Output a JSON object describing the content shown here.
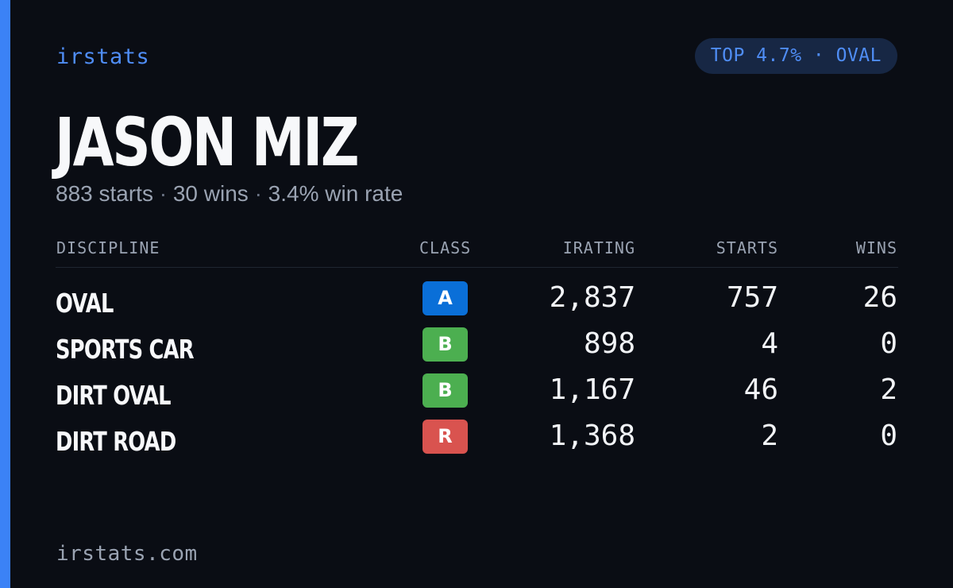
{
  "brand": "irstats",
  "rank_badge": "TOP 4.7% · OVAL",
  "driver": {
    "name": "JASON MIZ",
    "starts_text": "883 starts",
    "wins_text": "30 wins",
    "win_rate_text": "3.4% win rate",
    "separator": "·"
  },
  "table": {
    "headers": {
      "discipline": "DISCIPLINE",
      "class": "CLASS",
      "irating": "IRATING",
      "starts": "STARTS",
      "wins": "WINS"
    },
    "rows": [
      {
        "discipline": "OVAL",
        "class": "A",
        "class_color": "#0a6fd8",
        "irating": "2,837",
        "starts": "757",
        "wins": "26"
      },
      {
        "discipline": "SPORTS CAR",
        "class": "B",
        "class_color": "#4caf50",
        "irating": "898",
        "starts": "4",
        "wins": "0"
      },
      {
        "discipline": "DIRT OVAL",
        "class": "B",
        "class_color": "#4caf50",
        "irating": "1,167",
        "starts": "46",
        "wins": "2"
      },
      {
        "discipline": "DIRT ROAD",
        "class": "R",
        "class_color": "#d9534f",
        "irating": "1,368",
        "starts": "2",
        "wins": "0"
      }
    ]
  },
  "footer": {
    "domain": "irstats.com"
  },
  "colors": {
    "background": "#0a0d14",
    "accent": "#3b82f6",
    "muted_text": "#9aa3b2"
  }
}
